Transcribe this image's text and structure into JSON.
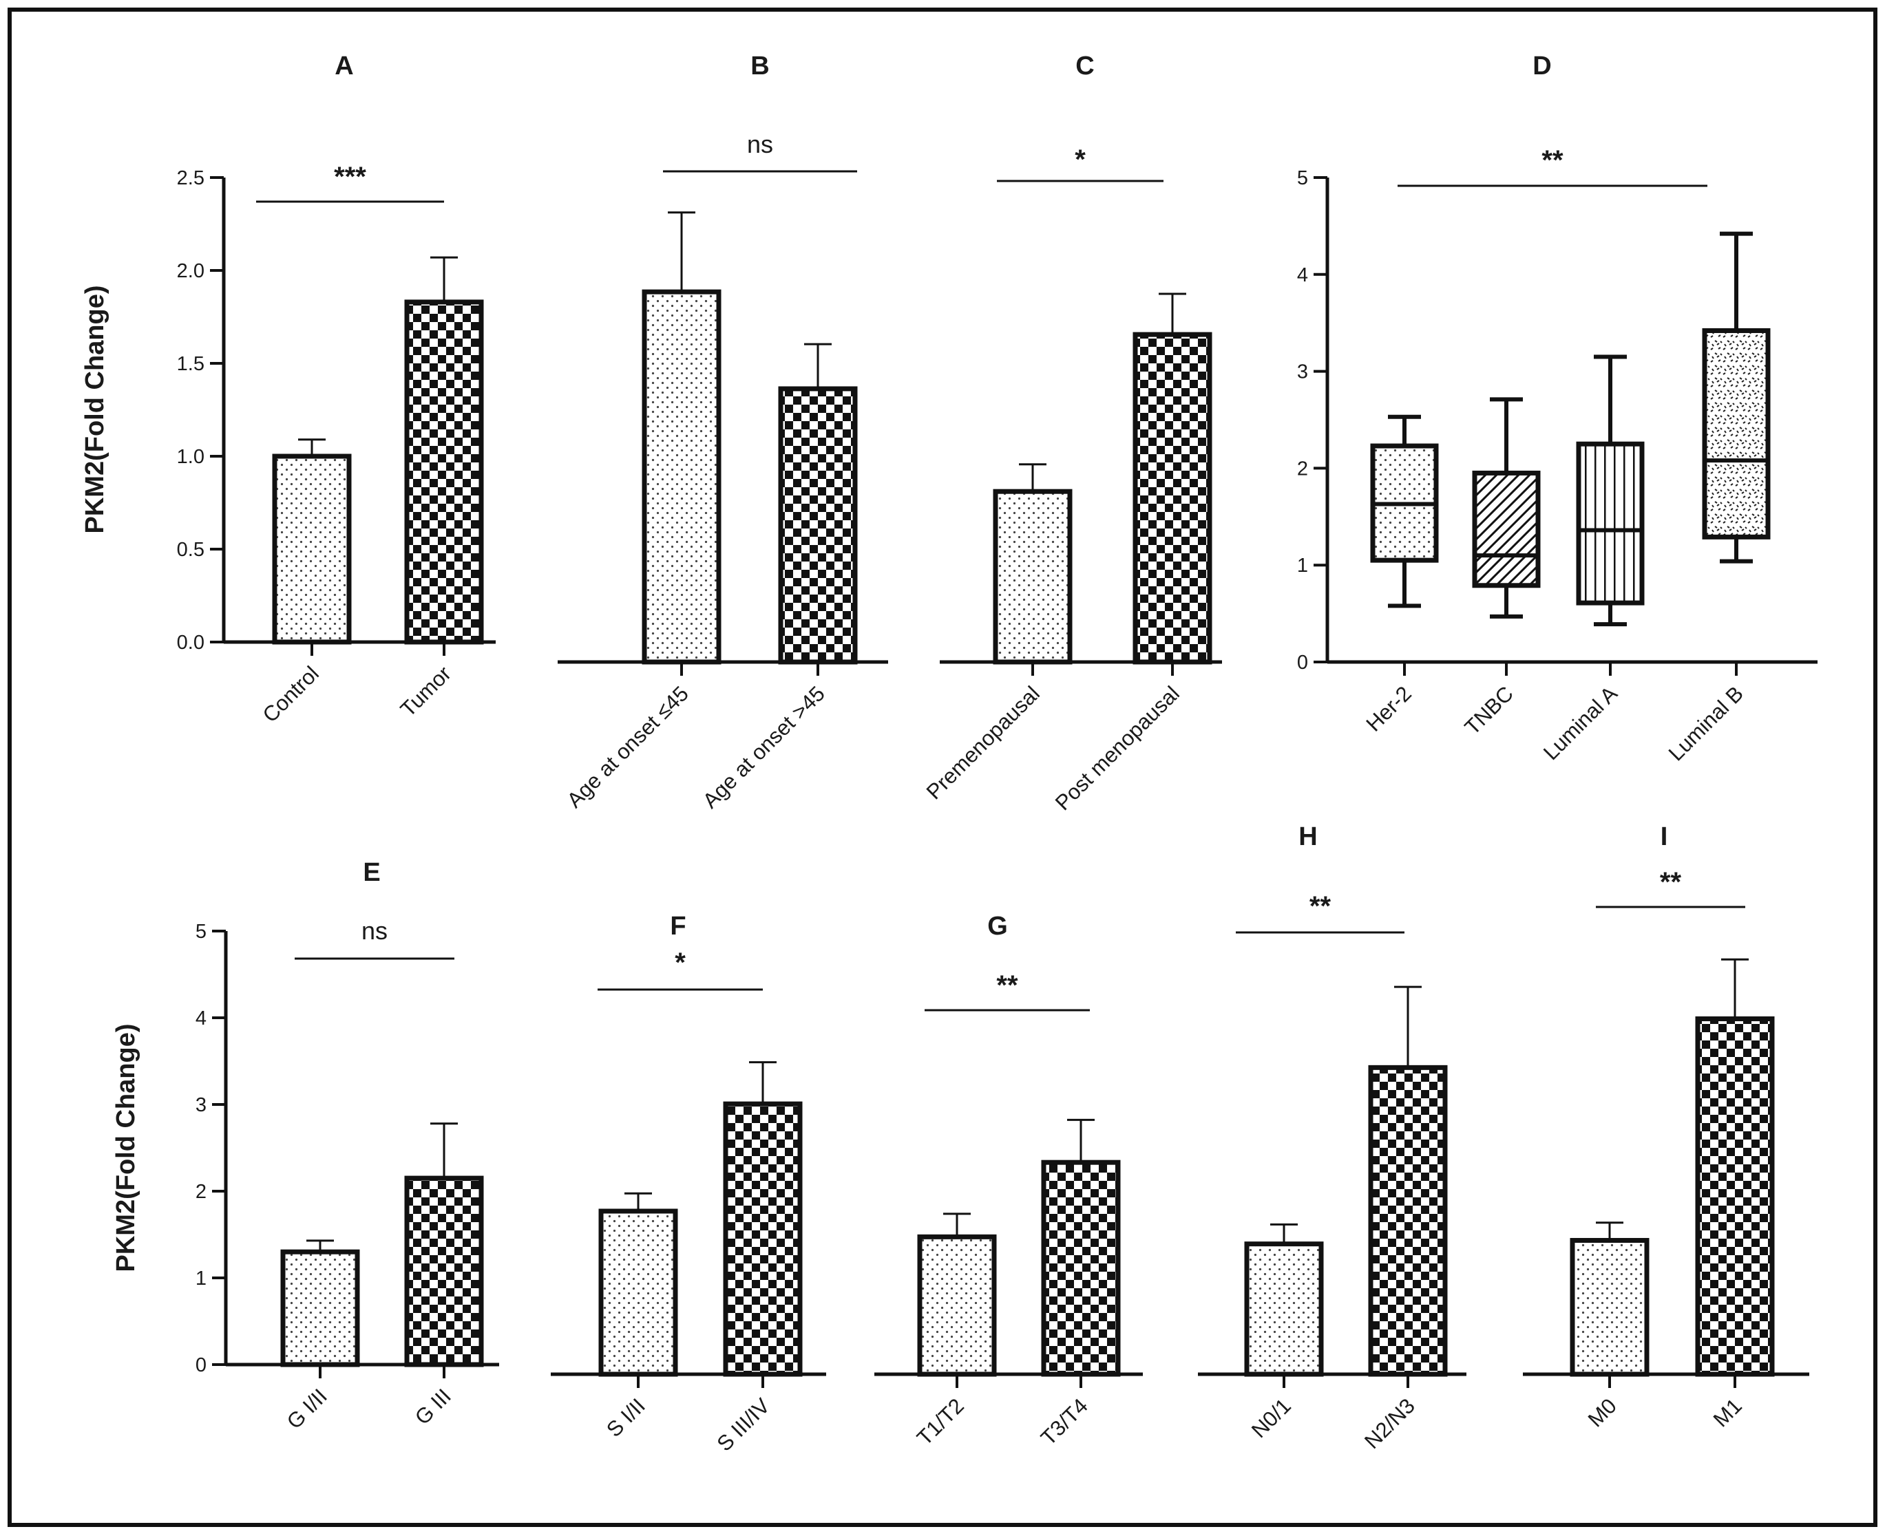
{
  "ylabel": "PKM2(Fold Change)",
  "chart_data": [
    {
      "panel": "A",
      "type": "bar",
      "title": "A",
      "ylabel": "PKM2(Fold Change)",
      "ylim": [
        0,
        2.5
      ],
      "yticks": [
        "0.0",
        "0.5",
        "1.0",
        "1.5",
        "2.0",
        "2.5"
      ],
      "categories": [
        "Control",
        "Tumor"
      ],
      "values": [
        1.0,
        1.83
      ],
      "errors": [
        0.09,
        0.24
      ],
      "patterns": [
        "dots",
        "checker"
      ],
      "significance": "***"
    },
    {
      "panel": "B",
      "type": "bar",
      "title": "B",
      "ylabel": "",
      "ylim": [
        0,
        2.5
      ],
      "yticks": [],
      "categories": [
        "Age at onset ≤45",
        "Age at onset >45"
      ],
      "values": [
        1.91,
        1.41
      ],
      "errors": [
        0.41,
        0.23
      ],
      "patterns": [
        "dots",
        "checker"
      ],
      "significance": "ns"
    },
    {
      "panel": "C",
      "type": "bar",
      "title": "C",
      "ylabel": "",
      "ylim": [
        0,
        2.5
      ],
      "yticks": [],
      "categories": [
        "Premenopausal",
        "Post menopausal"
      ],
      "values": [
        0.88,
        1.69
      ],
      "errors": [
        0.14,
        0.21
      ],
      "patterns": [
        "dots",
        "checker"
      ],
      "significance": "*"
    },
    {
      "panel": "D",
      "type": "box",
      "title": "D",
      "ylabel": "",
      "ylim": [
        0,
        5
      ],
      "yticks": [
        "0",
        "1",
        "2",
        "3",
        "4",
        "5"
      ],
      "categories": [
        "Her-2",
        "TNBC",
        "Luminal A",
        "Luminal B"
      ],
      "boxes": [
        {
          "min": 0.58,
          "q1": 1.05,
          "median": 1.63,
          "q3": 2.23,
          "max": 2.53
        },
        {
          "min": 0.47,
          "q1": 0.79,
          "median": 1.1,
          "q3": 1.95,
          "max": 2.71
        },
        {
          "min": 0.39,
          "q1": 0.61,
          "median": 1.36,
          "q3": 2.25,
          "max": 3.15
        },
        {
          "min": 1.04,
          "q1": 1.29,
          "median": 2.08,
          "q3": 3.42,
          "max": 4.42
        }
      ],
      "patterns": [
        "dots",
        "diag",
        "vlines",
        "noise"
      ],
      "significance": "**"
    },
    {
      "panel": "E",
      "type": "bar",
      "title": "E",
      "ylabel": "PKM2(Fold Change)",
      "ylim": [
        0,
        5
      ],
      "yticks": [
        "0",
        "1",
        "2",
        "3",
        "4",
        "5"
      ],
      "categories": [
        "G I/II",
        "G III"
      ],
      "values": [
        1.3,
        2.15
      ],
      "errors": [
        0.13,
        0.63
      ],
      "patterns": [
        "dots",
        "checker"
      ],
      "significance": "ns"
    },
    {
      "panel": "F",
      "type": "bar",
      "title": "F",
      "ylabel": "",
      "ylim": [
        0,
        5
      ],
      "yticks": [],
      "categories": [
        "S I/II",
        "S III/IV"
      ],
      "values": [
        1.84,
        3.05
      ],
      "errors": [
        0.2,
        0.47
      ],
      "patterns": [
        "dots",
        "checker"
      ],
      "significance": "*"
    },
    {
      "panel": "G",
      "type": "bar",
      "title": "G",
      "ylabel": "",
      "ylim": [
        0,
        5
      ],
      "yticks": [],
      "categories": [
        "T1/T2",
        "T3/T4"
      ],
      "values": [
        1.55,
        2.39
      ],
      "errors": [
        0.26,
        0.48
      ],
      "patterns": [
        "dots",
        "checker"
      ],
      "significance": "**"
    },
    {
      "panel": "H",
      "type": "bar",
      "title": "H",
      "ylabel": "",
      "ylim": [
        0,
        5
      ],
      "yticks": [],
      "categories": [
        "N0/1",
        "N2/N3"
      ],
      "values": [
        1.47,
        3.46
      ],
      "errors": [
        0.22,
        0.91
      ],
      "patterns": [
        "dots",
        "checker"
      ],
      "significance": "**"
    },
    {
      "panel": "I",
      "type": "bar",
      "title": "I",
      "ylabel": "",
      "ylim": [
        0,
        5
      ],
      "yticks": [],
      "categories": [
        "M0",
        "M1"
      ],
      "values": [
        1.51,
        4.01
      ],
      "errors": [
        0.2,
        0.67
      ],
      "patterns": [
        "dots",
        "checker"
      ],
      "significance": "**"
    }
  ]
}
